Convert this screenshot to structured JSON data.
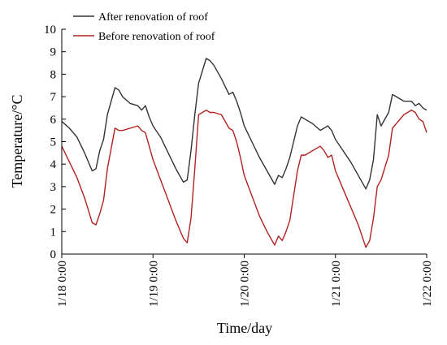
{
  "chart_data": {
    "type": "line",
    "xlabel": "Time/day",
    "ylabel": "Temperature/°C",
    "ylim": [
      0,
      10
    ],
    "yticks": [
      0,
      1,
      2,
      3,
      4,
      5,
      6,
      7,
      8,
      9,
      10
    ],
    "xlim": [
      "1/18 0:00",
      "1/22 0:00"
    ],
    "xticks": [
      "1/18 0:00",
      "1/19 0:00",
      "1/20 0:00",
      "1/21 0:00",
      "1/22 0:00"
    ],
    "grid": false,
    "legend_position": "top-left",
    "x": [
      "1/18 0:00",
      "1/18 2:00",
      "1/18 4:00",
      "1/18 6:00",
      "1/18 8:00",
      "1/18 9:00",
      "1/18 10:00",
      "1/18 11:00",
      "1/18 12:00",
      "1/18 14:00",
      "1/18 15:00",
      "1/18 16:00",
      "1/18 18:00",
      "1/18 20:00",
      "1/18 21:00",
      "1/18 22:00",
      "1/18 23:00",
      "1/19 0:00",
      "1/19 2:00",
      "1/19 4:00",
      "1/19 6:00",
      "1/19 8:00",
      "1/19 9:00",
      "1/19 10:00",
      "1/19 11:00",
      "1/19 12:00",
      "1/19 14:00",
      "1/19 15:00",
      "1/19 16:00",
      "1/19 18:00",
      "1/19 20:00",
      "1/19 21:00",
      "1/19 22:00",
      "1/19 23:00",
      "1/20 0:00",
      "1/20 2:00",
      "1/20 4:00",
      "1/20 6:00",
      "1/20 8:00",
      "1/20 9:00",
      "1/20 10:00",
      "1/20 11:00",
      "1/20 12:00",
      "1/20 14:00",
      "1/20 15:00",
      "1/20 16:00",
      "1/20 18:00",
      "1/20 20:00",
      "1/20 21:00",
      "1/20 22:00",
      "1/20 23:00",
      "1/21 0:00",
      "1/21 2:00",
      "1/21 4:00",
      "1/21 6:00",
      "1/21 8:00",
      "1/21 9:00",
      "1/21 10:00",
      "1/21 11:00",
      "1/21 12:00",
      "1/21 14:00",
      "1/21 15:00",
      "1/21 16:00",
      "1/21 18:00",
      "1/21 20:00",
      "1/21 21:00",
      "1/21 22:00",
      "1/21 23:00",
      "1/22 0:00"
    ],
    "series": [
      {
        "name": "After renovation of roof",
        "color": "#333333",
        "values": [
          5.9,
          5.6,
          5.2,
          4.5,
          3.7,
          3.8,
          4.6,
          5.1,
          6.2,
          7.4,
          7.3,
          7.0,
          6.7,
          6.6,
          6.4,
          6.6,
          6.1,
          5.7,
          5.2,
          4.5,
          3.8,
          3.2,
          3.3,
          4.6,
          6.2,
          7.6,
          8.7,
          8.6,
          8.4,
          7.8,
          7.1,
          7.2,
          6.8,
          6.3,
          5.7,
          5.0,
          4.3,
          3.7,
          3.1,
          3.5,
          3.4,
          3.8,
          4.3,
          5.7,
          6.1,
          6.0,
          5.8,
          5.5,
          5.6,
          5.7,
          5.5,
          5.1,
          4.6,
          4.1,
          3.5,
          2.9,
          3.3,
          4.2,
          6.2,
          5.7,
          6.3,
          7.1,
          7.0,
          6.8,
          6.8,
          6.6,
          6.7,
          6.5,
          6.4
        ]
      },
      {
        "name": "Before renovation of roof",
        "color": "#b22222",
        "values": [
          4.8,
          4.1,
          3.4,
          2.5,
          1.4,
          1.3,
          1.8,
          2.4,
          3.8,
          5.6,
          5.5,
          5.5,
          5.6,
          5.7,
          5.5,
          5.4,
          4.8,
          4.2,
          3.3,
          2.4,
          1.5,
          0.7,
          0.5,
          1.6,
          3.8,
          6.2,
          6.4,
          6.3,
          6.3,
          6.2,
          5.6,
          5.5,
          5.0,
          4.3,
          3.5,
          2.6,
          1.7,
          1.0,
          0.4,
          0.8,
          0.6,
          1.0,
          1.5,
          3.7,
          4.4,
          4.4,
          4.6,
          4.8,
          4.6,
          4.3,
          4.4,
          3.7,
          2.9,
          2.1,
          1.3,
          0.3,
          0.6,
          1.6,
          3.0,
          3.3,
          4.4,
          5.6,
          5.8,
          6.2,
          6.4,
          6.3,
          6.0,
          5.9,
          5.4
        ]
      }
    ]
  }
}
